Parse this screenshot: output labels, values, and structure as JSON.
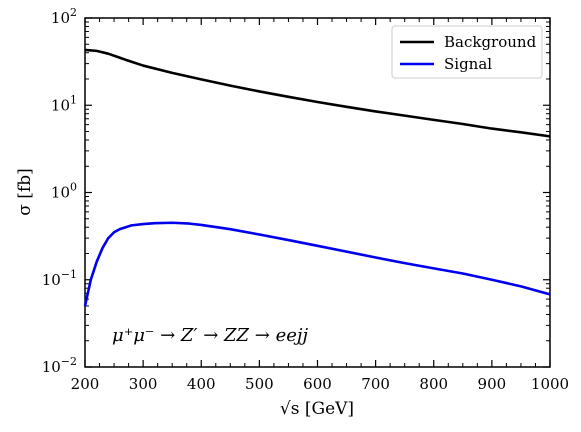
{
  "chart_data": {
    "type": "line",
    "title": "",
    "xlabel": "√s [GeV]",
    "ylabel": "σ [fb]",
    "yscale": "log",
    "xlim": [
      200,
      1000
    ],
    "ylim": [
      0.01,
      100
    ],
    "xticks": [
      200,
      300,
      400,
      500,
      600,
      700,
      800,
      900,
      1000
    ],
    "xtick_labels": [
      "200",
      "300",
      "400",
      "500",
      "600",
      "700",
      "800",
      "900",
      "1000"
    ],
    "yticks": [
      0.01,
      0.1,
      1,
      10,
      100
    ],
    "ytick_labels": [
      {
        "base": "10",
        "exp": "−2"
      },
      {
        "base": "10",
        "exp": "−1"
      },
      {
        "base": "10",
        "exp": "0"
      },
      {
        "base": "10",
        "exp": "1"
      },
      {
        "base": "10",
        "exp": "2"
      }
    ],
    "grid": false,
    "legend_position": "top-right",
    "annotation": "μ⁺μ⁻ → Z′ → ZZ → eejj",
    "series": [
      {
        "name": "Background",
        "color": "#000000",
        "x": [
          200,
          220,
          240,
          260,
          280,
          300,
          350,
          400,
          450,
          500,
          550,
          600,
          650,
          700,
          750,
          800,
          850,
          900,
          950,
          1000
        ],
        "y": [
          43,
          42,
          39,
          35,
          31.5,
          28.5,
          23.5,
          19.8,
          16.8,
          14.4,
          12.5,
          10.9,
          9.6,
          8.5,
          7.6,
          6.8,
          6.1,
          5.4,
          4.9,
          4.4
        ]
      },
      {
        "name": "Signal",
        "color": "#0000ee",
        "x": [
          200,
          210,
          220,
          230,
          240,
          250,
          260,
          270,
          280,
          300,
          320,
          350,
          380,
          400,
          450,
          500,
          550,
          600,
          650,
          700,
          750,
          800,
          850,
          900,
          950,
          1000
        ],
        "y": [
          0.05,
          0.1,
          0.16,
          0.23,
          0.3,
          0.35,
          0.38,
          0.4,
          0.42,
          0.435,
          0.445,
          0.45,
          0.44,
          0.425,
          0.38,
          0.33,
          0.285,
          0.245,
          0.21,
          0.18,
          0.155,
          0.135,
          0.118,
          0.1,
          0.084,
          0.068
        ]
      }
    ]
  }
}
